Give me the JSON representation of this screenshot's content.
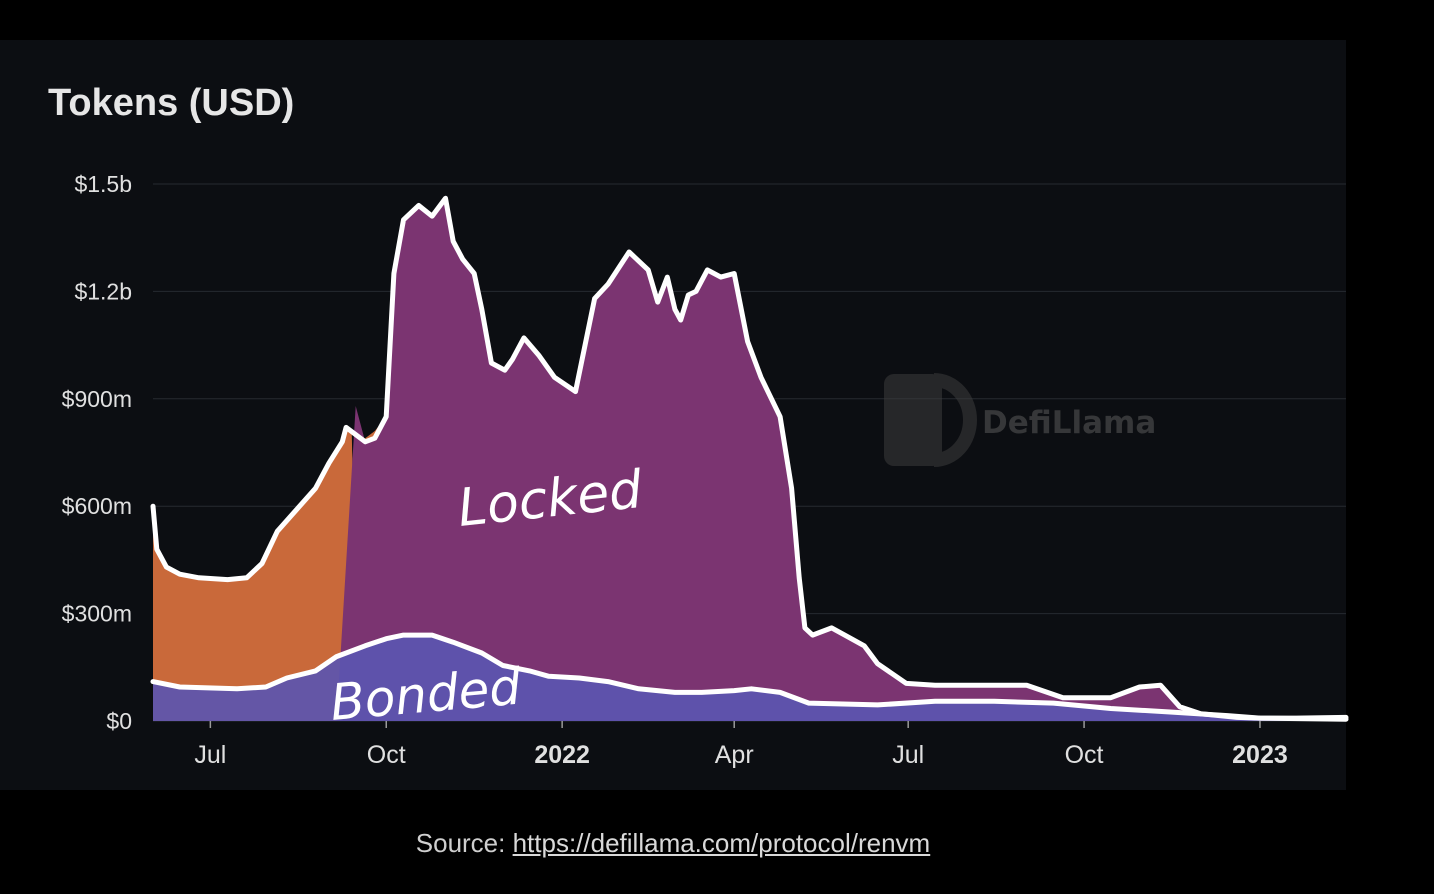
{
  "chart_data": {
    "type": "area",
    "title": "Tokens (USD)",
    "watermark": "DefiLlama",
    "y_ticks": [
      "$0",
      "$300m",
      "$600m",
      "$900m",
      "$1.2b",
      "$1.5b"
    ],
    "y_tick_values": [
      0,
      300,
      600,
      900,
      1200,
      1500
    ],
    "ylim": [
      0,
      1500
    ],
    "y_unit": "USD millions",
    "x_ticks": [
      {
        "label": "Jul",
        "date": "2021-07-01",
        "bold": false
      },
      {
        "label": "Oct",
        "date": "2021-10-01",
        "bold": false
      },
      {
        "label": "2022",
        "date": "2022-01-01",
        "bold": true
      },
      {
        "label": "Apr",
        "date": "2022-04-01",
        "bold": false
      },
      {
        "label": "Jul",
        "date": "2022-07-01",
        "bold": false
      },
      {
        "label": "Oct",
        "date": "2022-10-01",
        "bold": false
      },
      {
        "label": "2023",
        "date": "2023-01-01",
        "bold": true
      }
    ],
    "xlim": [
      "2021-06-01",
      "2023-02-15"
    ],
    "grid": true,
    "annotations": [
      "Locked",
      "Bonded"
    ],
    "series": [
      {
        "color": "#c9693a",
        "x": [
          "2021-06-01",
          "2021-06-03",
          "2021-06-08",
          "2021-06-15",
          "2021-06-25",
          "2021-07-10",
          "2021-07-20",
          "2021-07-28",
          "2021-08-05",
          "2021-08-15",
          "2021-08-25",
          "2021-09-01",
          "2021-09-08",
          "2021-09-10",
          "2021-09-13",
          "2021-09-16",
          "2021-09-20",
          "2021-09-25",
          "2021-09-28",
          "2021-09-30",
          "2021-10-01",
          "2021-10-10",
          "2021-11-01",
          "2021-12-01",
          "2022-01-01",
          "2022-04-01",
          "2022-07-01",
          "2022-10-01",
          "2023-01-01",
          "2023-02-15"
        ],
        "values": [
          600,
          480,
          430,
          410,
          400,
          395,
          400,
          440,
          530,
          590,
          650,
          720,
          780,
          820,
          800,
          20,
          790,
          810,
          830,
          800,
          20,
          20,
          35,
          30,
          28,
          25,
          20,
          15,
          10,
          5
        ]
      },
      {
        "color": "#7b3471",
        "x": [
          "2021-06-01",
          "2021-09-05",
          "2021-09-15",
          "2021-09-20",
          "2021-09-25",
          "2021-10-01",
          "2021-10-05",
          "2021-10-10",
          "2021-10-18",
          "2021-10-25",
          "2021-11-01",
          "2021-11-05",
          "2021-11-10",
          "2021-11-16",
          "2021-11-20",
          "2021-11-25",
          "2021-12-02",
          "2021-12-06",
          "2021-12-12",
          "2021-12-20",
          "2021-12-28",
          "2022-01-08",
          "2022-01-18",
          "2022-01-25",
          "2022-02-05",
          "2022-02-15",
          "2022-02-20",
          "2022-02-25",
          "2022-03-01",
          "2022-03-04",
          "2022-03-08",
          "2022-03-12",
          "2022-03-18",
          "2022-03-25",
          "2022-04-01",
          "2022-04-08",
          "2022-04-15",
          "2022-04-25",
          "2022-05-01",
          "2022-05-05",
          "2022-05-08",
          "2022-05-12",
          "2022-05-22",
          "2022-06-08",
          "2022-06-15",
          "2022-06-30",
          "2022-07-15",
          "2022-08-01",
          "2022-09-01",
          "2022-09-20",
          "2022-10-15",
          "2022-10-30",
          "2022-11-10",
          "2022-11-20",
          "2022-12-01",
          "2022-12-20",
          "2023-01-01",
          "2023-01-20",
          "2023-02-15"
        ],
        "values": [
          0,
          0,
          880,
          780,
          790,
          850,
          1250,
          1400,
          1440,
          1410,
          1460,
          1340,
          1290,
          1250,
          1150,
          1000,
          980,
          1010,
          1070,
          1020,
          960,
          920,
          1180,
          1220,
          1310,
          1260,
          1170,
          1240,
          1150,
          1120,
          1190,
          1200,
          1260,
          1240,
          1250,
          1060,
          960,
          850,
          650,
          400,
          260,
          240,
          260,
          210,
          160,
          105,
          100,
          100,
          100,
          65,
          65,
          95,
          100,
          40,
          20,
          10,
          8,
          8,
          10
        ]
      },
      {
        "color": "#5b55b0",
        "x": [
          "2021-06-01",
          "2021-06-15",
          "2021-07-15",
          "2021-07-30",
          "2021-08-10",
          "2021-08-25",
          "2021-09-05",
          "2021-09-20",
          "2021-10-01",
          "2021-10-10",
          "2021-10-25",
          "2021-11-05",
          "2021-11-20",
          "2021-12-01",
          "2021-12-15",
          "2021-12-25",
          "2022-01-10",
          "2022-01-25",
          "2022-02-10",
          "2022-03-01",
          "2022-03-15",
          "2022-04-01",
          "2022-04-10",
          "2022-04-25",
          "2022-05-10",
          "2022-06-15",
          "2022-07-15",
          "2022-08-15",
          "2022-09-15",
          "2022-10-15",
          "2022-11-15",
          "2022-12-15",
          "2023-01-01",
          "2023-02-15"
        ],
        "values": [
          110,
          95,
          90,
          95,
          120,
          140,
          180,
          210,
          230,
          240,
          240,
          220,
          190,
          155,
          140,
          125,
          120,
          110,
          90,
          80,
          80,
          85,
          90,
          80,
          50,
          45,
          55,
          55,
          50,
          35,
          25,
          15,
          8,
          5
        ]
      }
    ]
  },
  "caption": {
    "prefix": "Source: ",
    "link": "https://defillama.com/protocol/renvm"
  }
}
